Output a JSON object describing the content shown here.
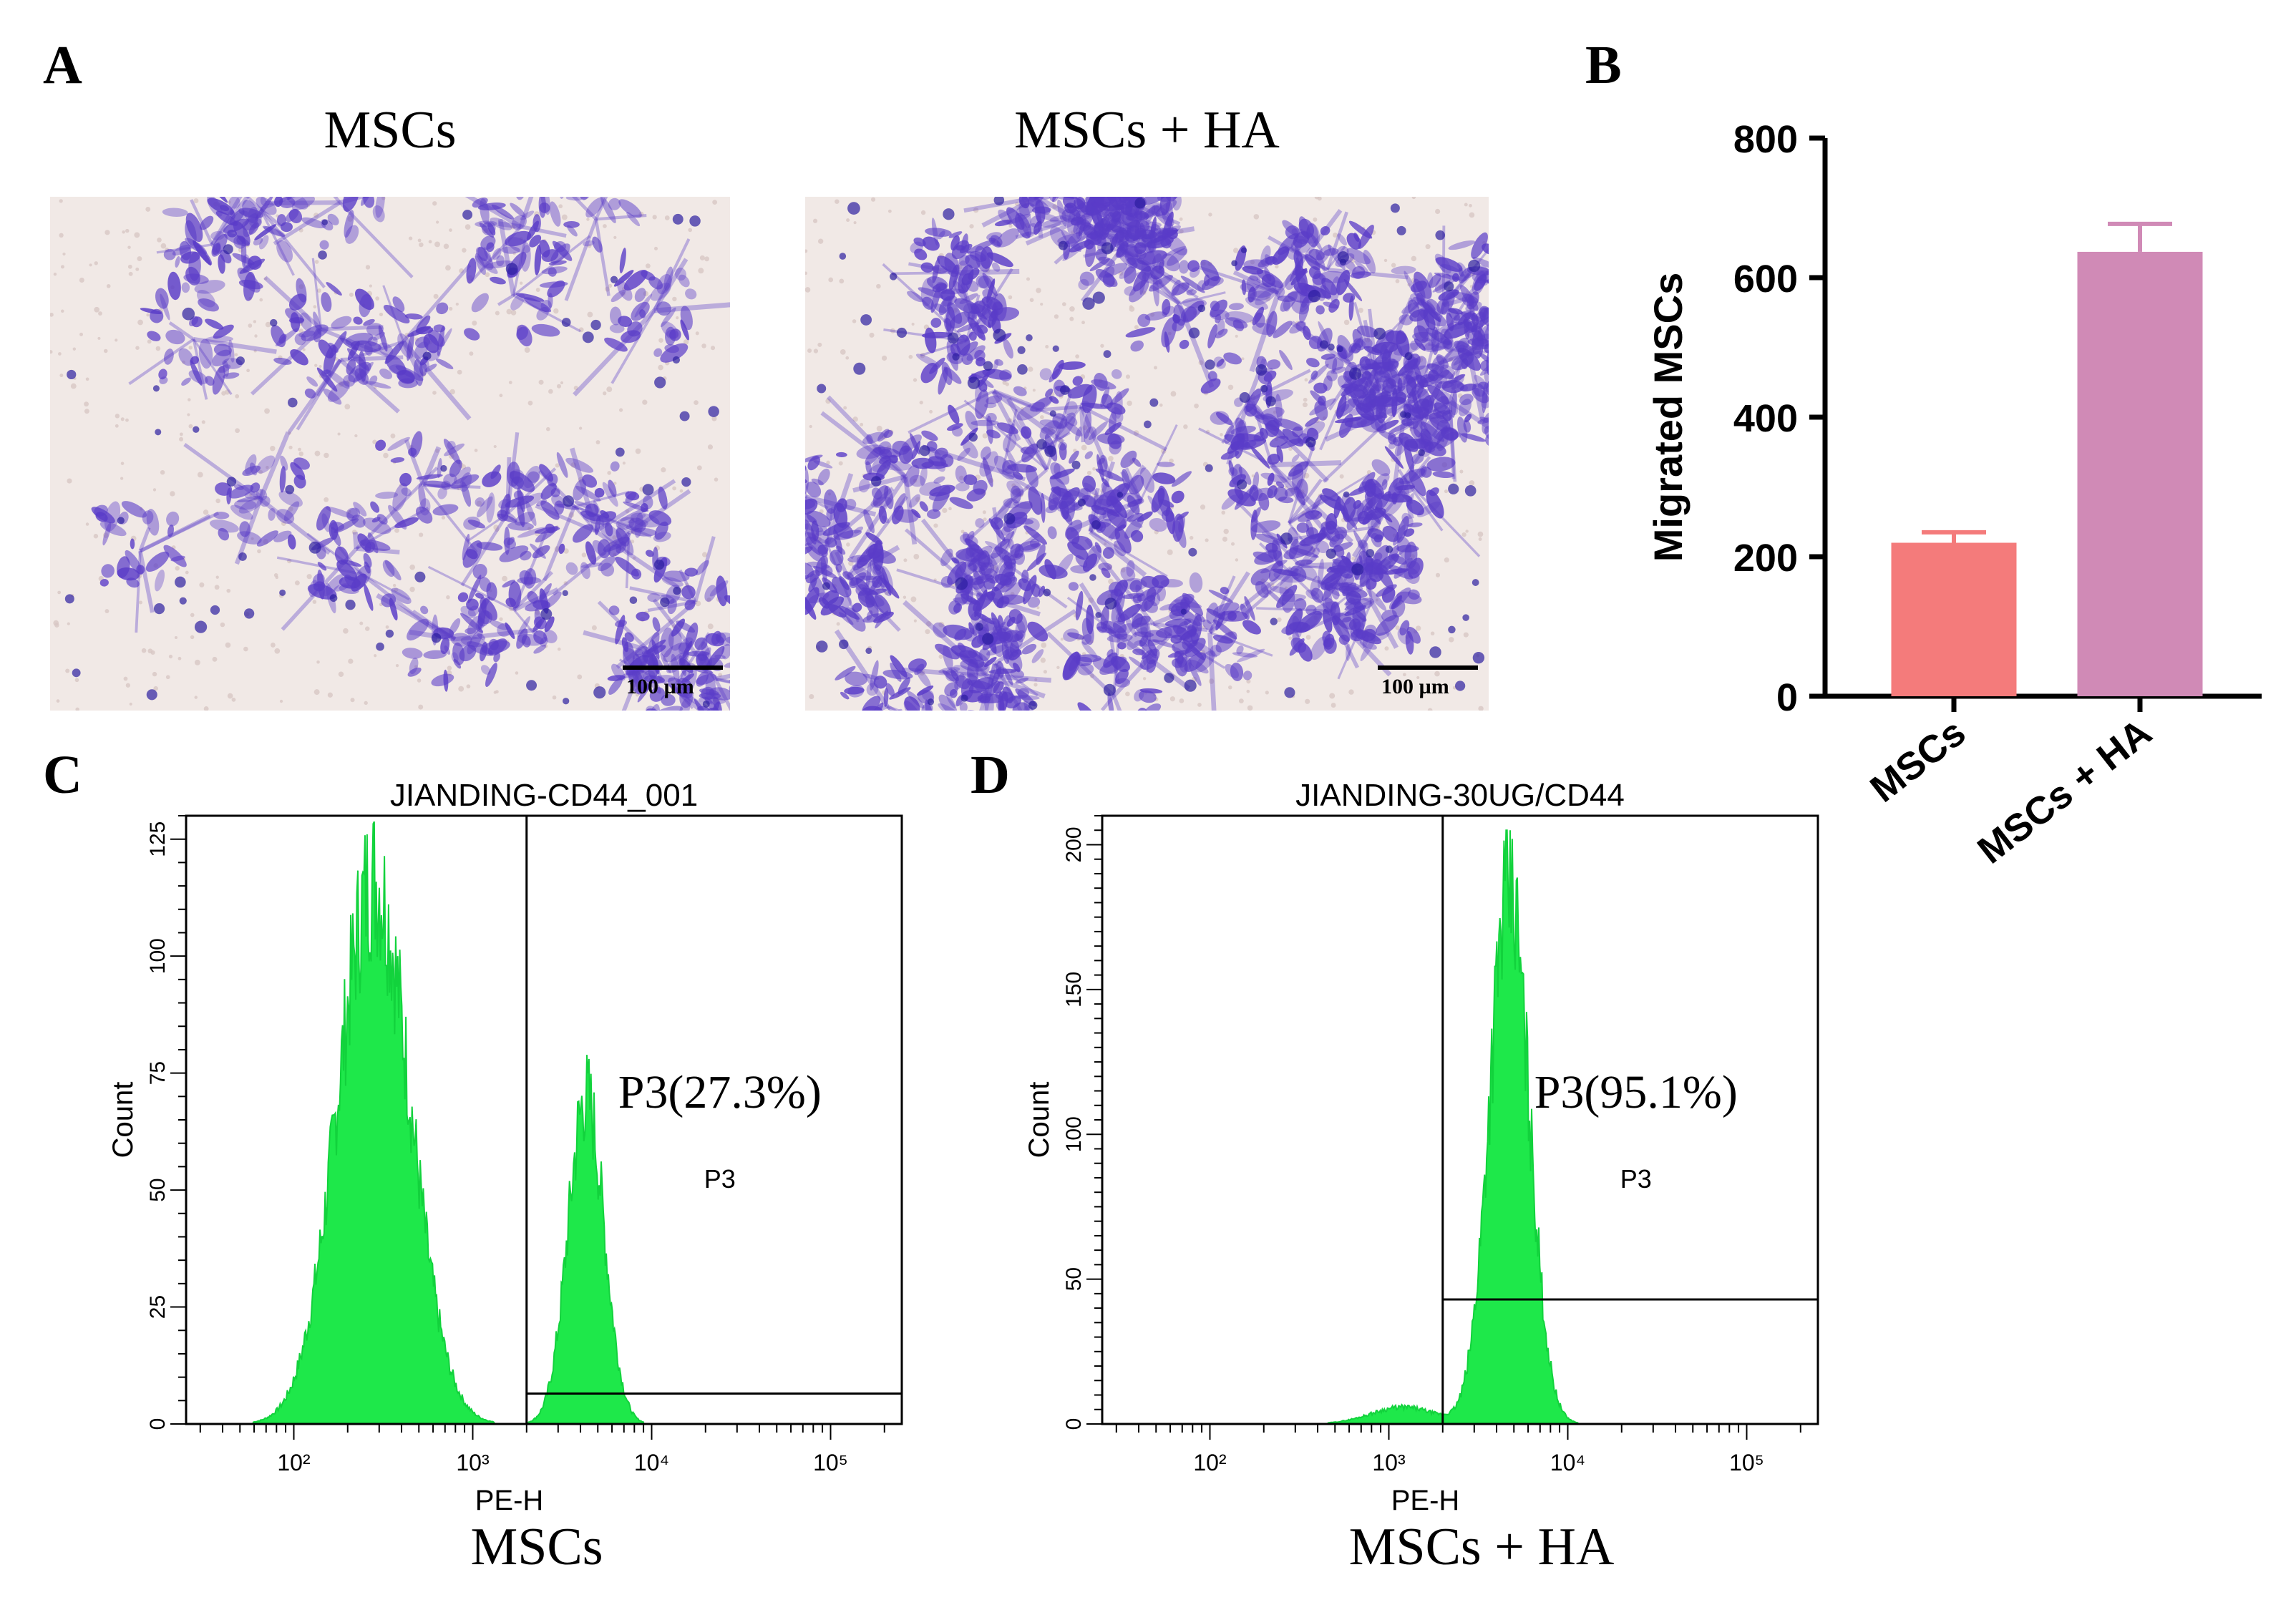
{
  "figure": {
    "panel_a": {
      "letter": "A",
      "left_title": "MSCs",
      "right_title": "MSCs + HA",
      "scale_bar_label": "100 µm",
      "stain_color": "#5a3cc8"
    },
    "panel_b": {
      "letter": "B"
    },
    "panel_c": {
      "letter": "C",
      "caption": "MSCs",
      "gate_label": "P3",
      "gate_percent_label": "P3(27.3%)"
    },
    "panel_d": {
      "letter": "D",
      "caption": "MSCs + HA",
      "gate_label": "P3",
      "gate_percent_label": "P3(95.1%)"
    }
  },
  "chart_data": [
    {
      "id": "B",
      "type": "bar",
      "categories": [
        "MSCs",
        "MSCs + HA"
      ],
      "values": [
        220,
        637
      ],
      "errors": [
        15,
        40
      ],
      "colors": [
        "#f47b7b",
        "#d08ab6"
      ],
      "ylabel": "Migrated MSCs",
      "ylim": [
        0,
        800
      ],
      "yticks": [
        "0",
        "200",
        "400",
        "600",
        "800"
      ],
      "grid": false
    },
    {
      "id": "C",
      "type": "area",
      "title": "JIANDING-CD44_001",
      "xlabel": "PE-H",
      "ylabel": "Count",
      "xscale": "log",
      "xlim": [
        25,
        250000
      ],
      "ylim": [
        0,
        130
      ],
      "yticks": [
        "0",
        "25",
        "50",
        "75",
        "100",
        "125"
      ],
      "xticks": [
        "10²",
        "10³",
        "10⁴",
        "10⁵"
      ],
      "fill_color": "#1ee84a",
      "gate": {
        "x_min": 2000,
        "x_max": 250000,
        "y": 6.5
      },
      "populations": [
        {
          "center": 280,
          "log_sigma": 0.2,
          "peak": 120
        },
        {
          "center": 4300,
          "log_sigma": 0.1,
          "peak": 72
        }
      ],
      "peak_max": 130
    },
    {
      "id": "D",
      "type": "area",
      "title": "JIANDING-30UG/CD44",
      "xlabel": "PE-H",
      "ylabel": "Count",
      "xscale": "log",
      "xlim": [
        25,
        250000
      ],
      "ylim": [
        0,
        210
      ],
      "yticks": [
        "0",
        "50",
        "100",
        "150",
        "200"
      ],
      "xticks": [
        "10²",
        "10³",
        "10⁴",
        "10⁵"
      ],
      "fill_color": "#1ee84a",
      "gate": {
        "x_min": 2000,
        "x_max": 250000,
        "y": 43
      },
      "populations": [
        {
          "center": 4700,
          "log_sigma": 0.11,
          "peak": 190
        },
        {
          "center": 1200,
          "log_sigma": 0.18,
          "peak": 6
        }
      ],
      "peak_max": 205
    }
  ]
}
